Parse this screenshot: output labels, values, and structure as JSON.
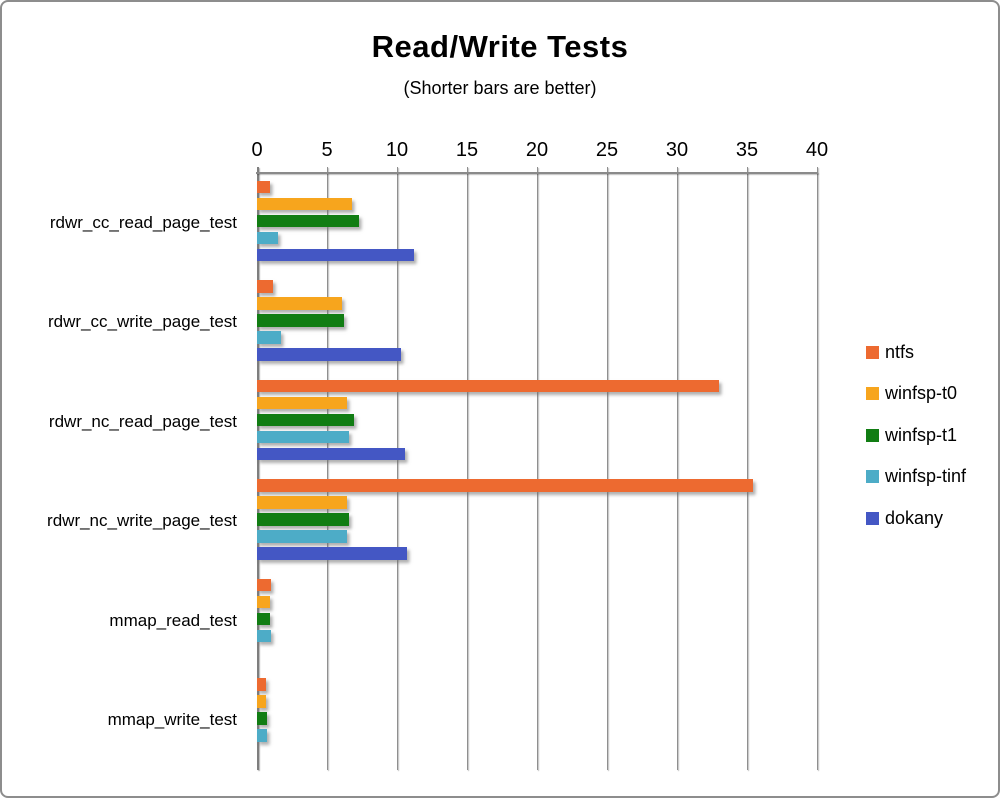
{
  "chart_data": {
    "type": "bar",
    "orientation": "horizontal",
    "title": "Read/Write Tests",
    "subtitle": "(Shorter bars are better)",
    "categories": [
      "rdwr_cc_read_page_test",
      "rdwr_cc_write_page_test",
      "rdwr_nc_read_page_test",
      "rdwr_nc_write_page_test",
      "mmap_read_test",
      "mmap_write_test"
    ],
    "series": [
      {
        "name": "ntfs",
        "color": "#ED6A30",
        "values": [
          0.95,
          1.15,
          33.0,
          35.4,
          1.0,
          0.65
        ]
      },
      {
        "name": "winfsp-t0",
        "color": "#F7A51D",
        "values": [
          6.8,
          6.1,
          6.4,
          6.4,
          0.95,
          0.65
        ]
      },
      {
        "name": "winfsp-t1",
        "color": "#117D13",
        "values": [
          7.3,
          6.2,
          6.9,
          6.55,
          0.95,
          0.7
        ]
      },
      {
        "name": "winfsp-tinf",
        "color": "#4DACC7",
        "values": [
          1.5,
          1.7,
          6.55,
          6.45,
          1.0,
          0.7
        ]
      },
      {
        "name": "dokany",
        "color": "#4457C4",
        "values": [
          11.2,
          10.3,
          10.6,
          10.7,
          0,
          0
        ]
      }
    ],
    "x_axis": {
      "min": 0,
      "max": 40,
      "tick_step": 5,
      "ticks": [
        0,
        5,
        10,
        15,
        20,
        25,
        30,
        35,
        40
      ]
    },
    "legend_position": "right",
    "grid": true,
    "axis_color": "#8a8a8a",
    "gridline_color": "#8f8f8f"
  }
}
